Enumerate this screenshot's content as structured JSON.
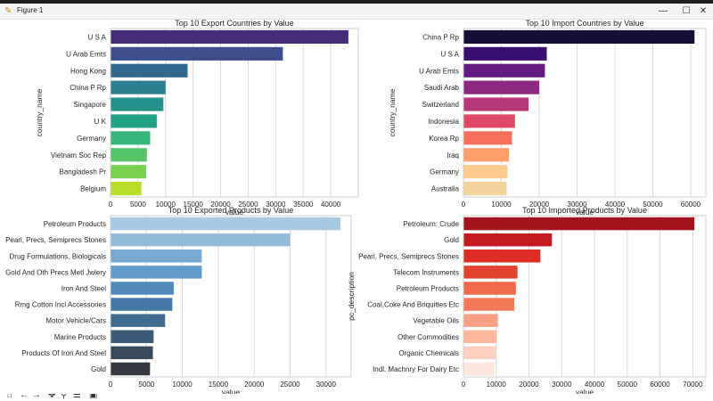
{
  "window": {
    "title": "Figure 1",
    "controls": {
      "minimize": "—",
      "maximize": "☐",
      "close": "✕"
    }
  },
  "toolbar": {
    "icons": [
      "home-icon",
      "back-icon",
      "forward-icon",
      "pan-icon",
      "zoom-icon",
      "configure-icon",
      "save-icon"
    ]
  },
  "chart_data": [
    {
      "type": "bar",
      "orientation": "horizontal",
      "title": "Top 10 Export Countries by Value",
      "xlabel": "value",
      "ylabel": "country_name",
      "xlim": [
        0,
        45000
      ],
      "xticks": [
        0,
        5000,
        10000,
        15000,
        20000,
        25000,
        30000,
        35000,
        40000
      ],
      "categories": [
        "U S A",
        "U Arab Emts",
        "Hong Kong",
        "China P Rp",
        "Singapore",
        "U K",
        "Germany",
        "Vietnam Soc Rep",
        "Bangladesh Pr",
        "Belgium"
      ],
      "values": [
        43200,
        31300,
        14000,
        10000,
        9600,
        8400,
        7200,
        6600,
        6500,
        5600
      ],
      "colors": [
        "#472c7a",
        "#3d4e8a",
        "#31688e",
        "#2b7f8e",
        "#23918c",
        "#1fa187",
        "#35b779",
        "#54c568",
        "#7ad151",
        "#b8de29"
      ]
    },
    {
      "type": "bar",
      "orientation": "horizontal",
      "title": "Top 10 Import Countries by Value",
      "xlabel": "value",
      "ylabel": "country_name",
      "xlim": [
        0,
        64000
      ],
      "xticks": [
        0,
        10000,
        20000,
        30000,
        40000,
        50000,
        60000
      ],
      "categories": [
        "China P Rp",
        "U S A",
        "U Arab Emts",
        "Saudi Arab",
        "Switzerland",
        "Indonesia",
        "Korea Rp",
        "Iraq",
        "Germany",
        "Australia"
      ],
      "values": [
        61000,
        22000,
        21500,
        20000,
        17200,
        13600,
        12800,
        12000,
        11600,
        11400
      ],
      "colors": [
        "#150e37",
        "#3b0f70",
        "#641a80",
        "#8c2981",
        "#b73779",
        "#de4968",
        "#f7705c",
        "#fe9f6d",
        "#feca8d",
        "#f4d29e"
      ]
    },
    {
      "type": "bar",
      "orientation": "horizontal",
      "title": "Top 10 Exported Products by Value",
      "xlabel": "value",
      "ylabel": "",
      "xlim": [
        0,
        33500
      ],
      "xticks": [
        0,
        5000,
        10000,
        15000,
        20000,
        25000,
        30000
      ],
      "categories": [
        "Petroleum Products",
        "Pearl, Precs, Semiprecs Stones",
        "Drug Formulations, Biologicals",
        "Gold And Oth Precs Metl Jwlery",
        "Iron And Steel",
        "Rmg Cotton Incl Accessories",
        "Motor Vehicle/Cars",
        "Marine Products",
        "Products Of Iron And Steel",
        "Gold"
      ],
      "values": [
        32000,
        25000,
        12700,
        12700,
        8800,
        8600,
        7600,
        6000,
        5900,
        5500
      ],
      "colors": [
        "#a7c9e1",
        "#91bbd9",
        "#78a9d1",
        "#649ac8",
        "#5189bb",
        "#4679a9",
        "#426b90",
        "#3c5a78",
        "#38495c",
        "#34393f"
      ]
    },
    {
      "type": "bar",
      "orientation": "horizontal",
      "title": "Top 10 Imported Products by Value",
      "xlabel": "value",
      "ylabel": "pc_description",
      "xlim": [
        0,
        74000
      ],
      "xticks": [
        0,
        10000,
        20000,
        30000,
        40000,
        50000,
        60000,
        70000
      ],
      "categories": [
        "Petroleum: Crude",
        "Gold",
        "Pearl, Precs, Semiprecs Stones",
        "Telecom Instruments",
        "Petroleum Products",
        "Coal,Coke And Briquittes Etc",
        "Vegetable Oils",
        "Other Commodities",
        "Organic Chemicals",
        "Indl. Machnry For Dairy Etc"
      ],
      "values": [
        70500,
        27000,
        23500,
        16500,
        16000,
        15500,
        10500,
        10200,
        9900,
        9400
      ],
      "colors": [
        "#a3151d",
        "#c3191f",
        "#dc2c23",
        "#e3432f",
        "#ee6a4c",
        "#f4795a",
        "#f8a086",
        "#fbb89d",
        "#fdd0bf",
        "#fde5db"
      ]
    }
  ]
}
